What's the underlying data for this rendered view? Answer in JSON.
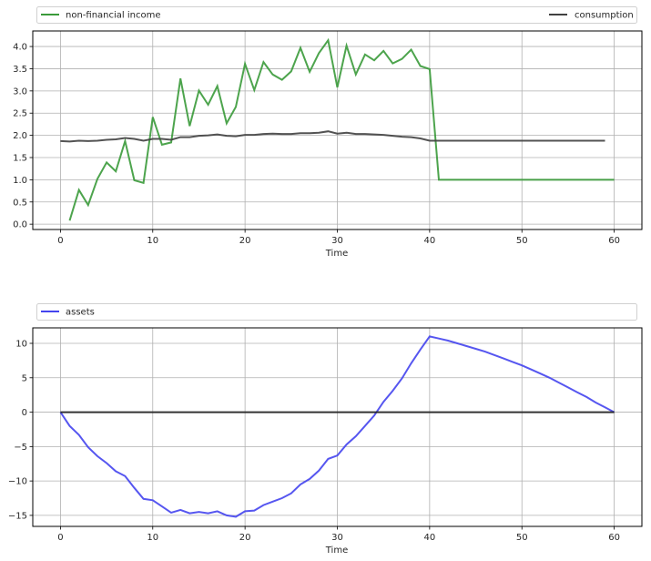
{
  "chart_data": [
    {
      "type": "line",
      "xlabel": "Time",
      "ylabel": "",
      "xlim": [
        -3,
        63
      ],
      "ylim": [
        -0.12,
        4.35
      ],
      "xticks": [
        0,
        10,
        20,
        30,
        40,
        50,
        60
      ],
      "yticks": [
        0.0,
        0.5,
        1.0,
        1.5,
        2.0,
        2.5,
        3.0,
        3.5,
        4.0
      ],
      "grid": true,
      "legend_placement": "top, above plot (expanded)",
      "series": [
        {
          "name": "non-financial income",
          "color": "#3a9a3a",
          "x_start": 1,
          "values": [
            0.08,
            0.77,
            0.43,
            1.02,
            1.39,
            1.19,
            1.87,
            0.99,
            0.93,
            2.41,
            1.79,
            1.84,
            3.28,
            2.21,
            3.01,
            2.69,
            3.11,
            2.27,
            2.64,
            3.61,
            3.02,
            3.65,
            3.37,
            3.25,
            3.44,
            3.97,
            3.43,
            3.85,
            4.14,
            3.08,
            4.02,
            3.37,
            3.82,
            3.69,
            3.9,
            3.62,
            3.72,
            3.93,
            3.56,
            3.49,
            1.0,
            1.0,
            1.0,
            1.0,
            1.0,
            1.0,
            1.0,
            1.0,
            1.0,
            1.0,
            1.0,
            1.0,
            1.0,
            1.0,
            1.0,
            1.0,
            1.0,
            1.0,
            1.0,
            1.0
          ]
        },
        {
          "name": "consumption",
          "color": "#404040",
          "x_start": 0,
          "values": [
            1.87,
            1.86,
            1.88,
            1.87,
            1.88,
            1.9,
            1.91,
            1.94,
            1.92,
            1.88,
            1.92,
            1.92,
            1.9,
            1.96,
            1.96,
            1.99,
            2.0,
            2.02,
            1.99,
            1.98,
            2.01,
            2.01,
            2.03,
            2.04,
            2.03,
            2.03,
            2.05,
            2.05,
            2.06,
            2.09,
            2.04,
            2.06,
            2.03,
            2.03,
            2.02,
            2.01,
            1.99,
            1.97,
            1.96,
            1.93,
            1.88,
            1.88,
            1.88,
            1.88,
            1.88,
            1.88,
            1.88,
            1.88,
            1.88,
            1.88,
            1.88,
            1.88,
            1.88,
            1.88,
            1.88,
            1.88,
            1.88,
            1.88,
            1.88,
            1.88
          ]
        }
      ]
    },
    {
      "type": "line",
      "xlabel": "Time",
      "ylabel": "",
      "xlim": [
        -3,
        63
      ],
      "ylim": [
        -16.6,
        12.25
      ],
      "xticks": [
        0,
        10,
        20,
        30,
        40,
        50,
        60
      ],
      "yticks": [
        -15,
        -10,
        -5,
        0,
        5,
        10
      ],
      "grid": true,
      "legend_placement": "top, above plot (expanded)",
      "series": [
        {
          "name": "assets",
          "color": "#4444ee",
          "x_start": 0,
          "values": [
            0,
            -2.0,
            -3.3,
            -5.1,
            -6.4,
            -7.4,
            -8.6,
            -9.3,
            -11.0,
            -12.6,
            -12.8,
            -13.7,
            -14.6,
            -14.2,
            -14.7,
            -14.5,
            -14.7,
            -14.4,
            -15.0,
            -15.2,
            -14.4,
            -14.3,
            -13.5,
            -13.0,
            -12.5,
            -11.8,
            -10.5,
            -9.7,
            -8.5,
            -6.8,
            -6.3,
            -4.7,
            -3.5,
            -2.0,
            -0.5,
            1.5,
            3.1,
            4.9,
            7.1,
            9.1,
            11.0,
            10.7,
            10.4,
            10.0,
            9.6,
            9.2,
            8.8,
            8.3,
            7.8,
            7.3,
            6.8,
            6.2,
            5.6,
            5.0,
            4.3,
            3.6,
            2.9,
            2.2,
            1.4,
            0.7,
            0.0
          ]
        },
        {
          "name": "",
          "color": "#222222",
          "x_start": 0,
          "values": [
            0,
            0,
            0,
            0,
            0,
            0,
            0,
            0,
            0,
            0,
            0,
            0,
            0,
            0,
            0,
            0,
            0,
            0,
            0,
            0,
            0,
            0,
            0,
            0,
            0,
            0,
            0,
            0,
            0,
            0,
            0,
            0,
            0,
            0,
            0,
            0,
            0,
            0,
            0,
            0,
            0,
            0,
            0,
            0,
            0,
            0,
            0,
            0,
            0,
            0,
            0,
            0,
            0,
            0,
            0,
            0,
            0,
            0,
            0,
            0,
            0
          ]
        }
      ]
    }
  ]
}
